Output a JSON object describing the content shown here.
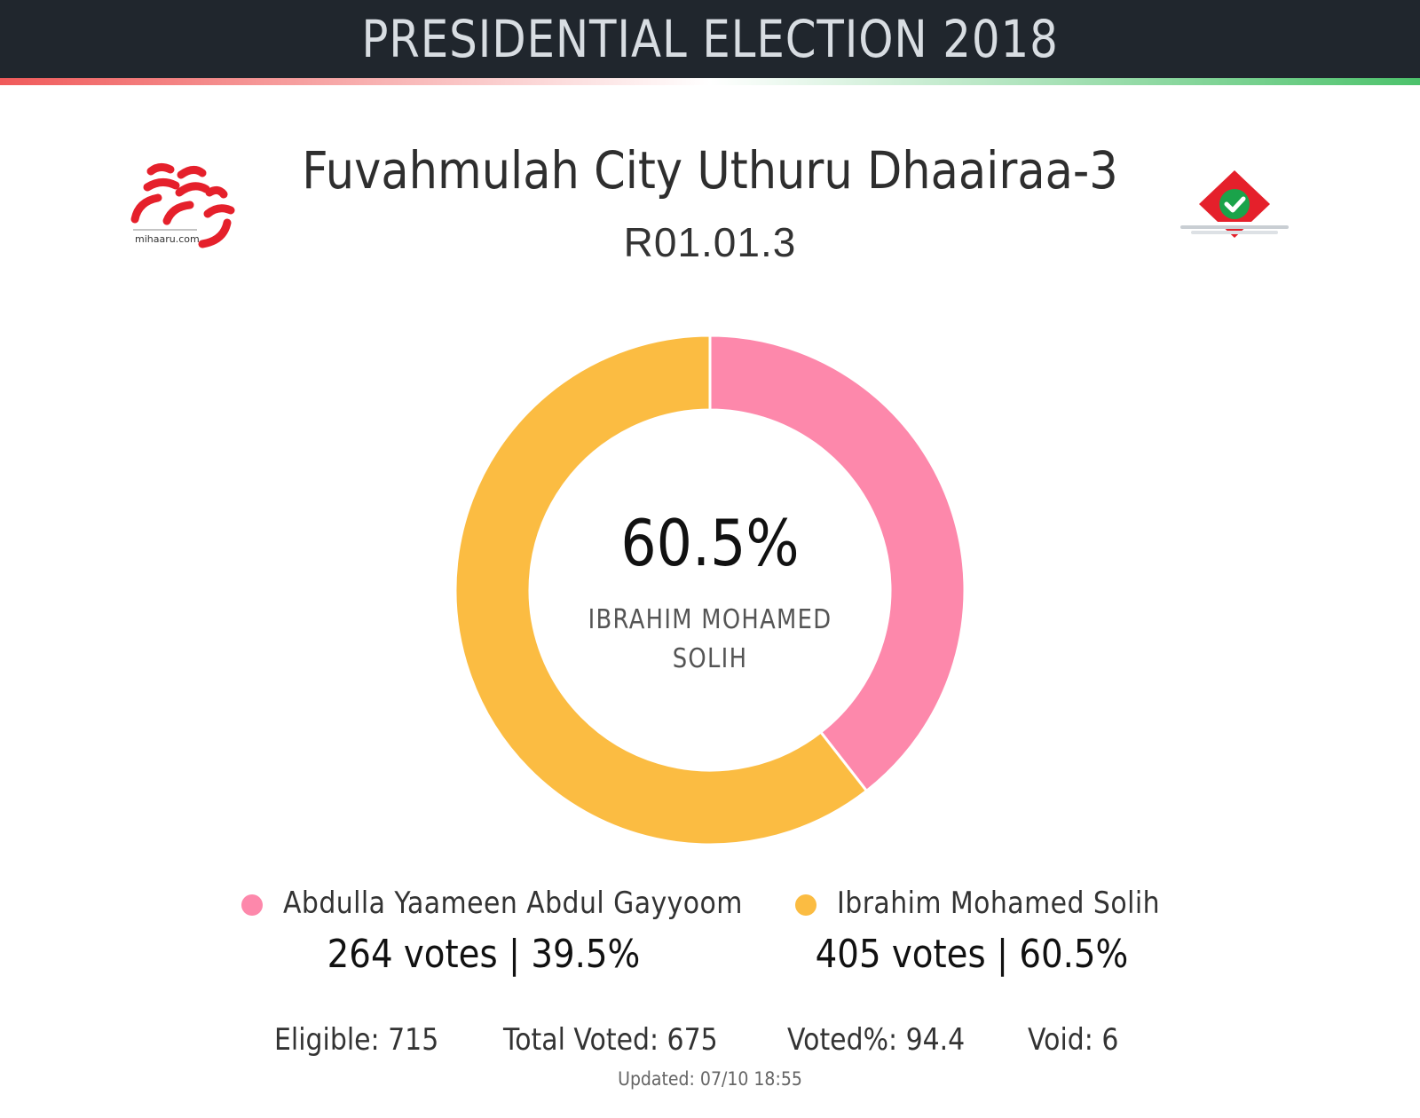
{
  "header": {
    "title": "PRESIDENTIAL ELECTION 2018"
  },
  "branding": {
    "left_logo_text": "mihaaru.com",
    "left_logo_color": "#e5202b",
    "right_logo_colors": [
      "#e5202b",
      "#1aa34a",
      "#c9ced3"
    ],
    "accent_gradient": [
      "#f05a5a",
      "#ffffff",
      "#4cc26b"
    ]
  },
  "constituency": {
    "name": "Fuvahmulah City Uthuru Dhaairaa-3",
    "code": "R01.01.3"
  },
  "chart_data": {
    "type": "pie",
    "variant": "donut",
    "categories": [
      "Abdulla Yaameen Abdul Gayyoom",
      "Ibrahim Mohamed Solih"
    ],
    "values": [
      264,
      405
    ],
    "percentages": [
      39.5,
      60.5
    ],
    "colors": [
      "#fd88ab",
      "#fbbc42"
    ],
    "center_value": "60.5%",
    "center_label": "IBRAHIM MOHAMED SOLIH",
    "legend": "bottom"
  },
  "legend": [
    {
      "name": "Abdulla Yaameen Abdul Gayyoom",
      "votes_text": "264 votes | 39.5%",
      "color": "#fd88ab"
    },
    {
      "name": "Ibrahim Mohamed Solih",
      "votes_text": "405 votes | 60.5%",
      "color": "#fbbc42"
    }
  ],
  "stats": {
    "eligible": "Eligible: 715",
    "total_voted": "Total Voted: 675",
    "voted_pct": "Voted%: 94.4",
    "void": "Void: 6"
  },
  "updated": "Updated: 07/10 18:55"
}
